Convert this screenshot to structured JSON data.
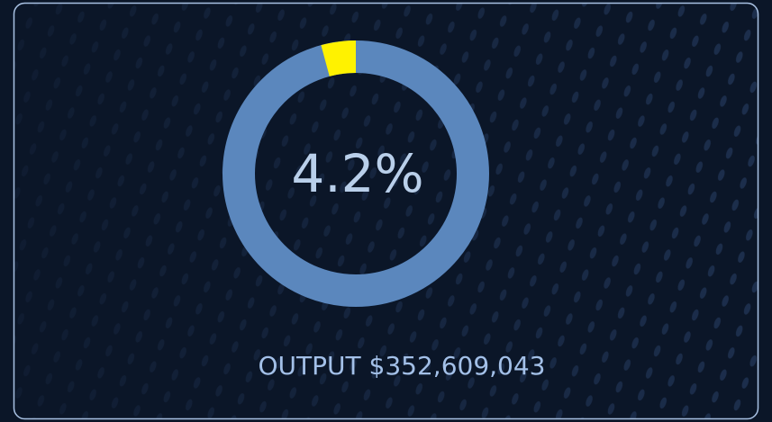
{
  "chart_data": {
    "type": "donut",
    "values": [
      4.2
    ],
    "value_labels": [
      "4.2%"
    ],
    "color": "#fff200",
    "track_color": "#5b87bd",
    "caption": "OUTPUT $352,609,043"
  }
}
